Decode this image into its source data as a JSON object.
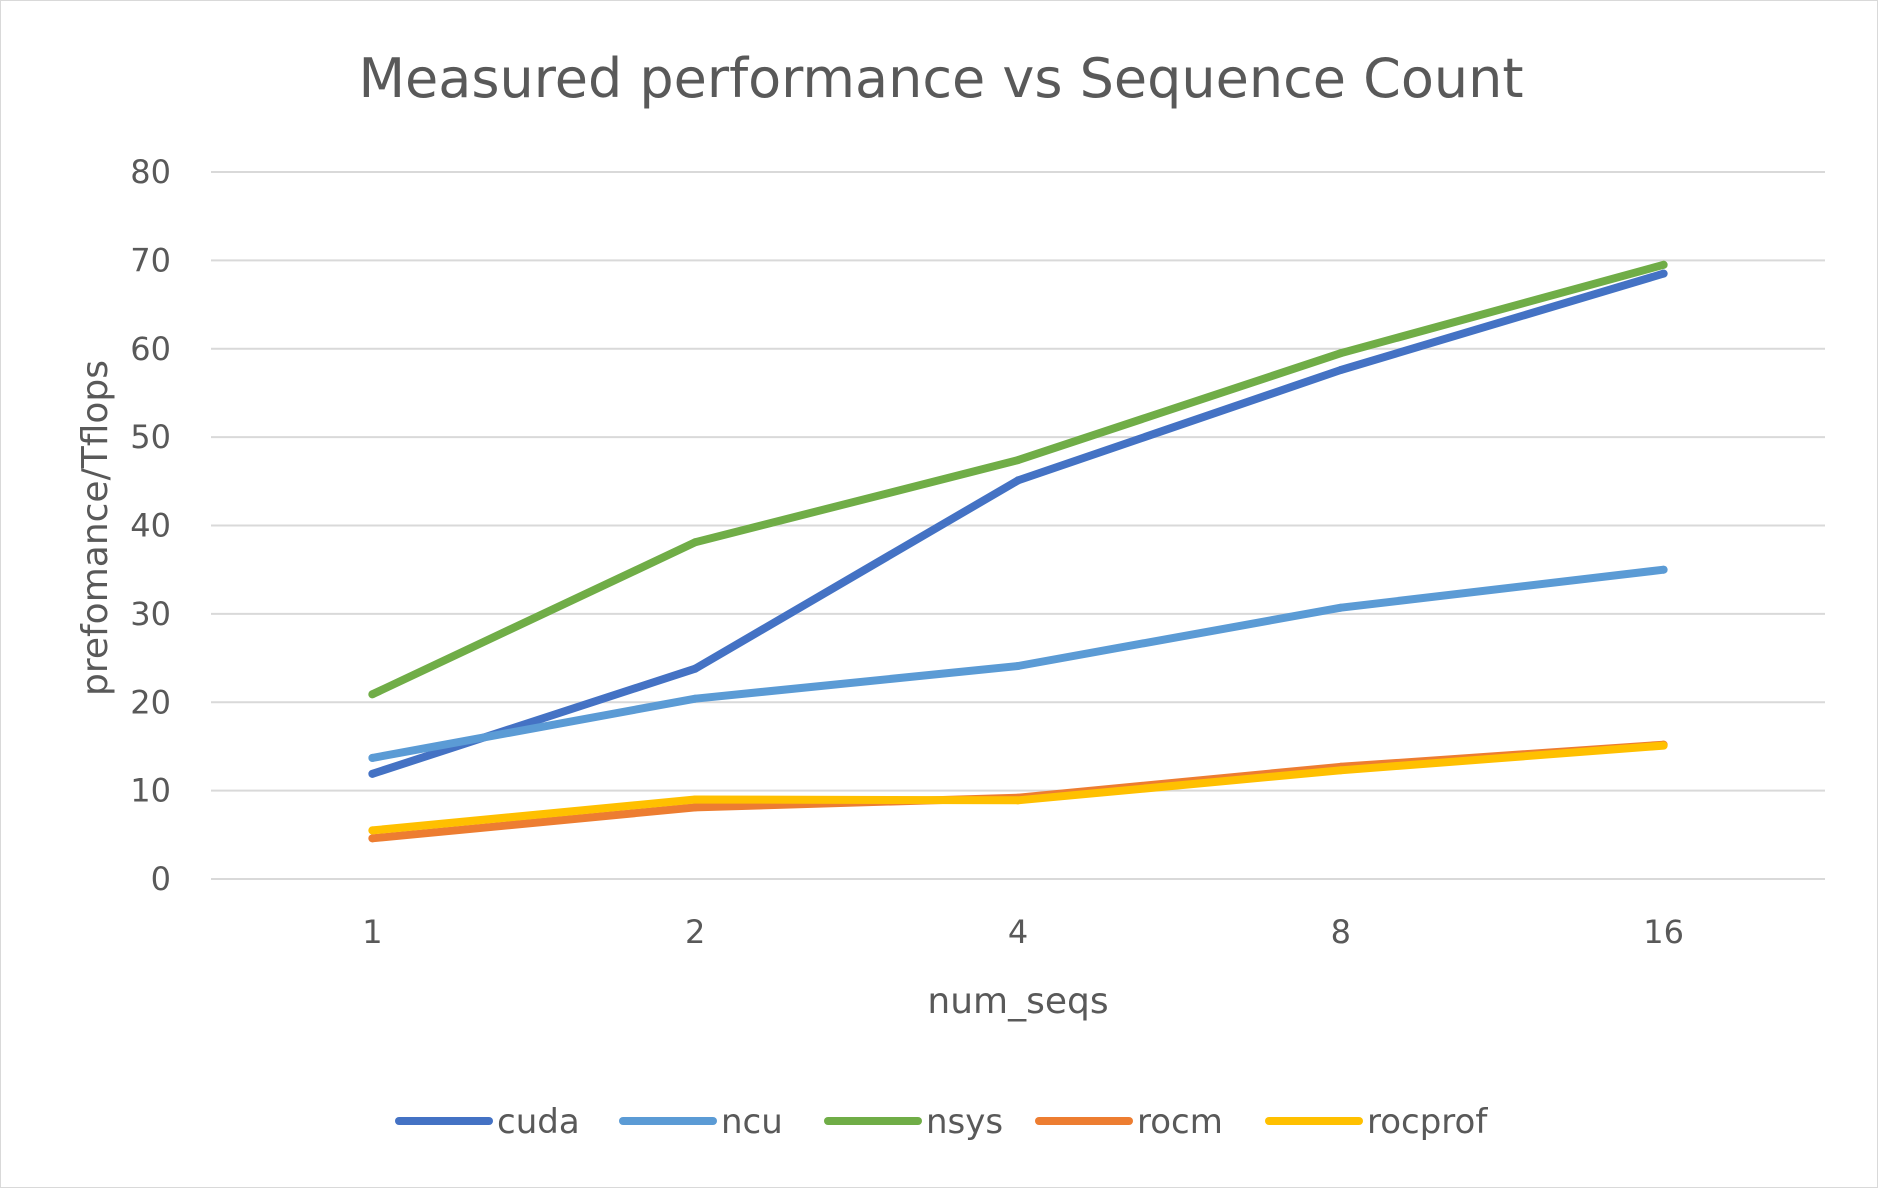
{
  "chart_data": {
    "type": "line",
    "title": "Measured performance vs Sequence Count",
    "xlabel": "num_seqs",
    "ylabel": "prefomance/Tflops",
    "categories": [
      "1",
      "2",
      "4",
      "8",
      "16"
    ],
    "ylim": [
      0,
      80
    ],
    "yticks": [
      0,
      10,
      20,
      30,
      40,
      50,
      60,
      70,
      80
    ],
    "grid": true,
    "legend_position": "bottom",
    "series": [
      {
        "name": "cuda",
        "color": "#4472C4",
        "values": [
          11.9,
          23.8,
          45.1,
          57.6,
          68.5
        ]
      },
      {
        "name": "ncu",
        "color": "#5B9BD5",
        "values": [
          13.7,
          20.4,
          24.1,
          30.7,
          35.0
        ]
      },
      {
        "name": "nsys",
        "color": "#70AD47",
        "values": [
          20.9,
          38.1,
          47.4,
          59.5,
          69.5
        ]
      },
      {
        "name": "rocm",
        "color": "#ED7D31",
        "values": [
          4.6,
          8.1,
          9.2,
          12.7,
          15.2
        ]
      },
      {
        "name": "rocprof",
        "color": "#FFC000",
        "values": [
          5.5,
          9.0,
          8.9,
          12.3,
          15.1
        ]
      }
    ]
  }
}
